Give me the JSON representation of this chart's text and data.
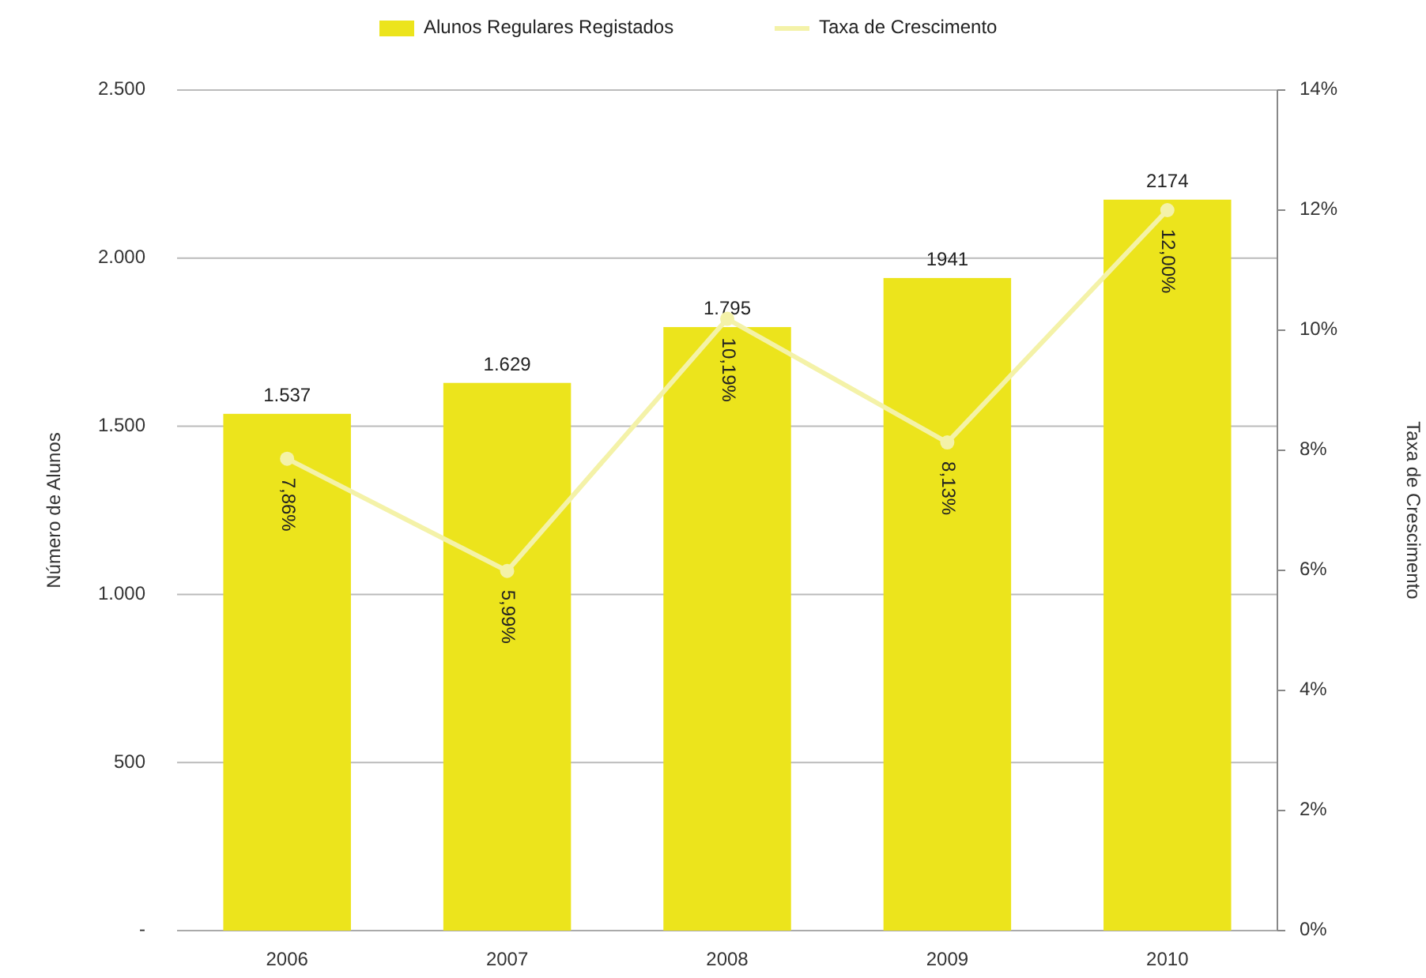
{
  "chart_data": {
    "type": "bar",
    "ylabel": "Número de Alunos",
    "y2label": "Taxa de Crescimento",
    "categories": [
      "2006",
      "2007",
      "2008",
      "2009",
      "2010"
    ],
    "series": [
      {
        "name": "Alunos Regulares Registados",
        "color": "#ece41c",
        "values": [
          1537,
          1629,
          1795,
          1941,
          2174
        ],
        "value_labels": [
          "1.537",
          "1.629",
          "1.795",
          "1941",
          "2174"
        ]
      },
      {
        "name": "Taxa de Crescimento",
        "type": "line",
        "axis": "y2",
        "color": "#f4f2a8",
        "marker": "circle",
        "values": [
          7.86,
          5.99,
          10.19,
          8.13,
          12.0
        ],
        "value_labels": [
          "7,86%",
          "5,99%",
          "10,19%",
          "8,13%",
          "12,00%"
        ]
      }
    ],
    "ylim": [
      0,
      2500
    ],
    "yticks": [
      {
        "value": 0,
        "label": "-"
      },
      {
        "value": 500,
        "label": "500"
      },
      {
        "value": 1000,
        "label": "1.000"
      },
      {
        "value": 1500,
        "label": "1.500"
      },
      {
        "value": 2000,
        "label": "2.000"
      },
      {
        "value": 2500,
        "label": "2.500"
      }
    ],
    "y2lim": [
      0,
      14
    ],
    "y2ticks": [
      {
        "value": 0,
        "label": "0%"
      },
      {
        "value": 2,
        "label": "2%"
      },
      {
        "value": 4,
        "label": "4%"
      },
      {
        "value": 6,
        "label": "6%"
      },
      {
        "value": 8,
        "label": "8%"
      },
      {
        "value": 10,
        "label": "10%"
      },
      {
        "value": 12,
        "label": "12%"
      },
      {
        "value": 14,
        "label": "14%"
      }
    ],
    "grid": "y",
    "legend": "top"
  }
}
